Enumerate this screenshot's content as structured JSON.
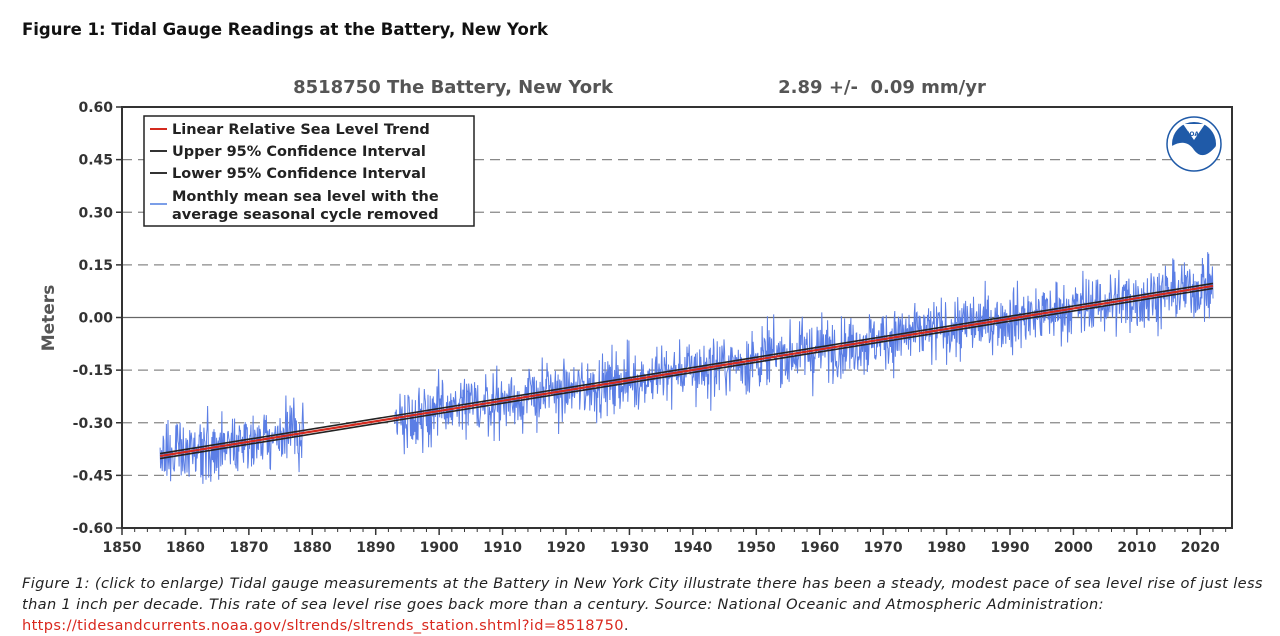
{
  "figure_title": "Figure 1: Tidal Gauge Readings at the Battery, New York",
  "caption": {
    "text": "Figure 1: (click to enlarge) Tidal gauge measurements at the Battery in New York City illustrate there has been a steady, modest pace of sea level rise of just less than 1 inch per decade. This rate of sea level rise goes back more than a century. Source: National Oceanic and Atmospheric Administration:",
    "link": "https://tidesandcurrents.noaa.gov/sltrends/sltrends_station.shtml?id=8518750",
    "end": "."
  },
  "logo_text": "NOAA",
  "chart_data": {
    "type": "line",
    "title": "8518750 The Battery, New York",
    "subtitle": "2.89 +/-  0.09 mm/yr",
    "xlabel": "",
    "ylabel": "Meters",
    "xlim": [
      1850,
      2025
    ],
    "ylim": [
      -0.6,
      0.6
    ],
    "x_ticks": [
      1850,
      1860,
      1870,
      1880,
      1890,
      1900,
      1910,
      1920,
      1930,
      1940,
      1950,
      1960,
      1970,
      1980,
      1990,
      2000,
      2010,
      2020
    ],
    "y_ticks": [
      "0.60",
      "0.45",
      "0.30",
      "0.15",
      "0.00",
      "-0.15",
      "-0.30",
      "-0.45",
      "-0.60"
    ],
    "grid": "horizontal dashed",
    "legend_position": "top-left",
    "legend": [
      {
        "label": "Linear Relative Sea Level Trend",
        "color": "#d42a1e"
      },
      {
        "label": "Upper 95% Confidence Interval",
        "color": "#333333"
      },
      {
        "label": "Lower 95% Confidence Interval",
        "color": "#333333"
      },
      {
        "label": "Monthly mean sea level with the",
        "label2": "average seasonal cycle removed",
        "color": "#7b9ee8"
      }
    ],
    "trend": {
      "rate_mm_per_yr": 2.89,
      "ci_mm_per_yr": 0.09,
      "x": [
        1856,
        2022
      ],
      "y": [
        -0.395,
        0.09
      ]
    },
    "monthly_segments": [
      {
        "x_start": 1856.0,
        "x_end": 1878.8
      },
      {
        "x_start": 1893.0,
        "x_end": 2022.0
      }
    ],
    "monthly_noise_sd": 0.055,
    "colors": {
      "series": "#5b7ee5",
      "trend": "#d42a1e",
      "ci": "#222222",
      "grid": "#888888",
      "axis": "#333333"
    }
  }
}
